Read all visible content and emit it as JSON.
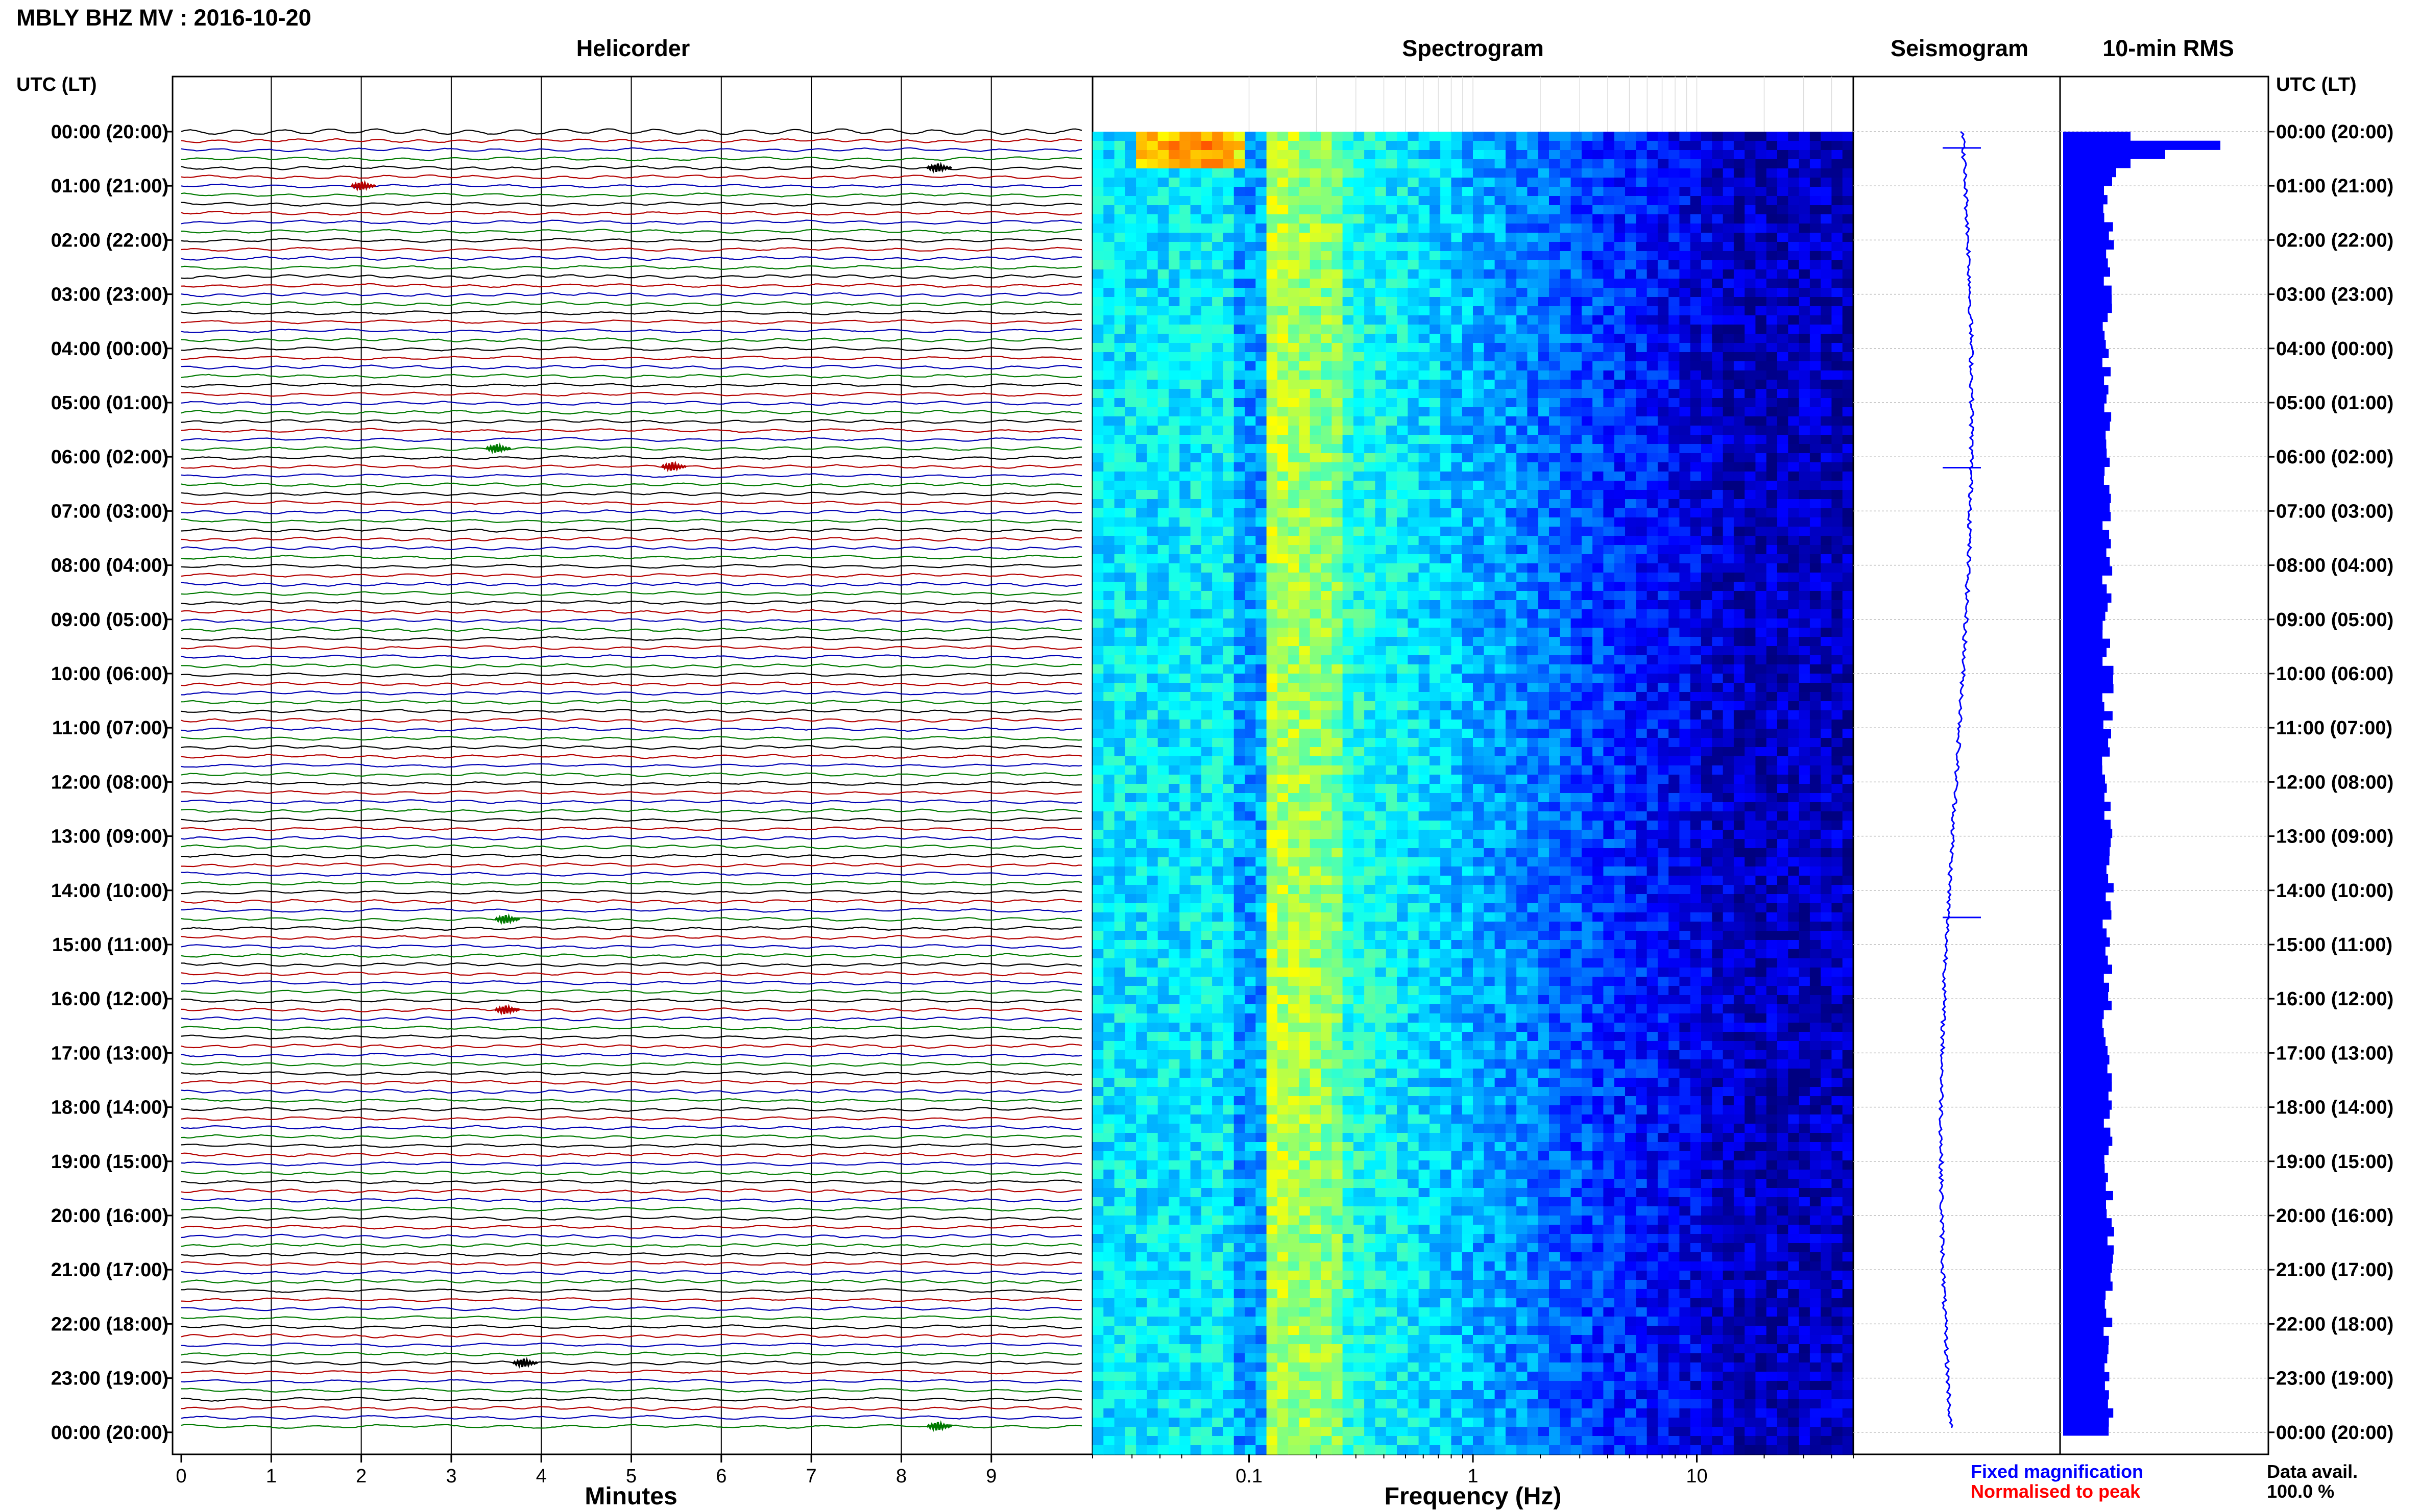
{
  "title": "MBLY BHZ MV : 2016-10-20",
  "panels": {
    "helicorder": "Helicorder",
    "spectrogram": "Spectrogram",
    "seismogram": "Seismogram",
    "rms": "10-min RMS"
  },
  "axis_header_left": "UTC (LT)",
  "axis_header_right": "UTC (LT)",
  "time_labels": [
    "00:00 (20:00)",
    "01:00 (21:00)",
    "02:00 (22:00)",
    "03:00 (23:00)",
    "04:00 (00:00)",
    "05:00 (01:00)",
    "06:00 (02:00)",
    "07:00 (03:00)",
    "08:00 (04:00)",
    "09:00 (05:00)",
    "10:00 (06:00)",
    "11:00 (07:00)",
    "12:00 (08:00)",
    "13:00 (09:00)",
    "14:00 (10:00)",
    "15:00 (11:00)",
    "16:00 (12:00)",
    "17:00 (13:00)",
    "18:00 (14:00)",
    "19:00 (15:00)",
    "20:00 (16:00)",
    "21:00 (17:00)",
    "22:00 (18:00)",
    "23:00 (19:00)",
    "00:00 (20:00)"
  ],
  "helicorder_xlabel": "Minutes",
  "helicorder_ticks": [
    "0",
    "1",
    "2",
    "3",
    "4",
    "5",
    "6",
    "7",
    "8",
    "9"
  ],
  "spectrogram_xlabel": "Frequency (Hz)",
  "spectrogram_ticks": [
    "0.1",
    "1",
    "10"
  ],
  "legend": {
    "fixed": "Fixed magnification",
    "normalised": "Normalised to peak",
    "fixed_color": "#0000ff",
    "normalised_color": "#ff0000"
  },
  "data_avail_label": "Data avail.",
  "data_avail_value": "100.0 %",
  "colors": {
    "trace_cycle": [
      "#000000",
      "#cc0000",
      "#0000cc",
      "#008800"
    ],
    "rms_bar": "#0000ff",
    "seismogram": "#0000ff"
  },
  "chart_data": [
    {
      "type": "line",
      "name": "Helicorder",
      "xlabel": "Minutes",
      "xlim": [
        0,
        10
      ],
      "rows": 144,
      "row_minutes": 10,
      "trace_color_cycle": [
        "black",
        "red",
        "blue",
        "green"
      ],
      "notable_events": [
        {
          "time_utc": "00:42",
          "minute": 8.4,
          "color": "black"
        },
        {
          "time_utc": "01:02",
          "minute": 2.0,
          "color": "red"
        },
        {
          "time_utc": "05:52",
          "minute": 3.5,
          "color": "green"
        },
        {
          "time_utc": "06:12",
          "minute": 5.45,
          "color": "red"
        },
        {
          "time_utc": "14:32",
          "minute": 3.6,
          "color": "green"
        },
        {
          "time_utc": "16:12",
          "minute": 3.6,
          "color": "red"
        },
        {
          "time_utc": "22:42",
          "minute": 3.8,
          "color": "black"
        },
        {
          "time_utc": "23:50",
          "minute": 8.4,
          "color": "green"
        }
      ]
    },
    {
      "type": "heatmap",
      "name": "Spectrogram",
      "xlabel": "Frequency (Hz)",
      "xscale": "log",
      "xlim": [
        0.02,
        50
      ],
      "x_ticks": [
        0.1,
        1,
        10
      ],
      "ylim_utc_hours": [
        0,
        24
      ],
      "colormap": "jet",
      "peak_band_hz": [
        0.12,
        0.25
      ],
      "low_freq_strong_hz": [
        0.05,
        0.09
      ],
      "high_freq_quiet_hz": [
        15,
        50
      ]
    },
    {
      "type": "line",
      "name": "Seismogram",
      "ylim_utc_hours": [
        0,
        24
      ],
      "spikes_utc_hours": [
        0.3,
        6.2,
        14.5
      ]
    },
    {
      "type": "bar",
      "name": "10-min RMS",
      "orientation": "horizontal",
      "bins": 144,
      "first_bins_relative": [
        0.33,
        0.77,
        0.5,
        0.33,
        0.26,
        0.24,
        0.2
      ],
      "typical_relative": 0.22
    }
  ]
}
